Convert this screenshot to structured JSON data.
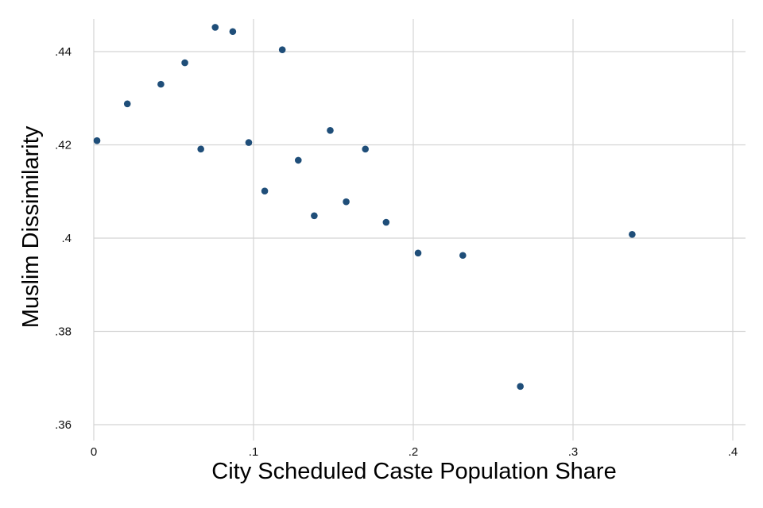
{
  "chart_data": {
    "type": "scatter",
    "title": "",
    "xlabel": "City Scheduled Caste Population Share",
    "ylabel": "Muslim Dissimilarity",
    "xlim": [
      0,
      0.4
    ],
    "ylim": [
      0.36,
      0.44
    ],
    "x_ticks": [
      {
        "value": 0,
        "label": "0"
      },
      {
        "value": 0.1,
        "label": ".1"
      },
      {
        "value": 0.2,
        "label": ".2"
      },
      {
        "value": 0.3,
        "label": ".3"
      },
      {
        "value": 0.4,
        "label": ".4"
      }
    ],
    "y_ticks": [
      {
        "value": 0.36,
        "label": ".36"
      },
      {
        "value": 0.38,
        "label": ".38"
      },
      {
        "value": 0.4,
        "label": ".4"
      },
      {
        "value": 0.42,
        "label": ".42"
      },
      {
        "value": 0.44,
        "label": ".44"
      }
    ],
    "grid": true,
    "legend": "none",
    "marker_color": "#1f4e79",
    "points": [
      {
        "x": 0.002,
        "y": 0.4209
      },
      {
        "x": 0.021,
        "y": 0.4288
      },
      {
        "x": 0.042,
        "y": 0.433
      },
      {
        "x": 0.057,
        "y": 0.4376
      },
      {
        "x": 0.067,
        "y": 0.4191
      },
      {
        "x": 0.076,
        "y": 0.4452
      },
      {
        "x": 0.087,
        "y": 0.4443
      },
      {
        "x": 0.097,
        "y": 0.4205
      },
      {
        "x": 0.107,
        "y": 0.4101
      },
      {
        "x": 0.118,
        "y": 0.4404
      },
      {
        "x": 0.128,
        "y": 0.4167
      },
      {
        "x": 0.138,
        "y": 0.4048
      },
      {
        "x": 0.148,
        "y": 0.4231
      },
      {
        "x": 0.158,
        "y": 0.4078
      },
      {
        "x": 0.17,
        "y": 0.4191
      },
      {
        "x": 0.183,
        "y": 0.4034
      },
      {
        "x": 0.203,
        "y": 0.3968
      },
      {
        "x": 0.231,
        "y": 0.3963
      },
      {
        "x": 0.267,
        "y": 0.3682
      },
      {
        "x": 0.337,
        "y": 0.4008
      }
    ]
  }
}
